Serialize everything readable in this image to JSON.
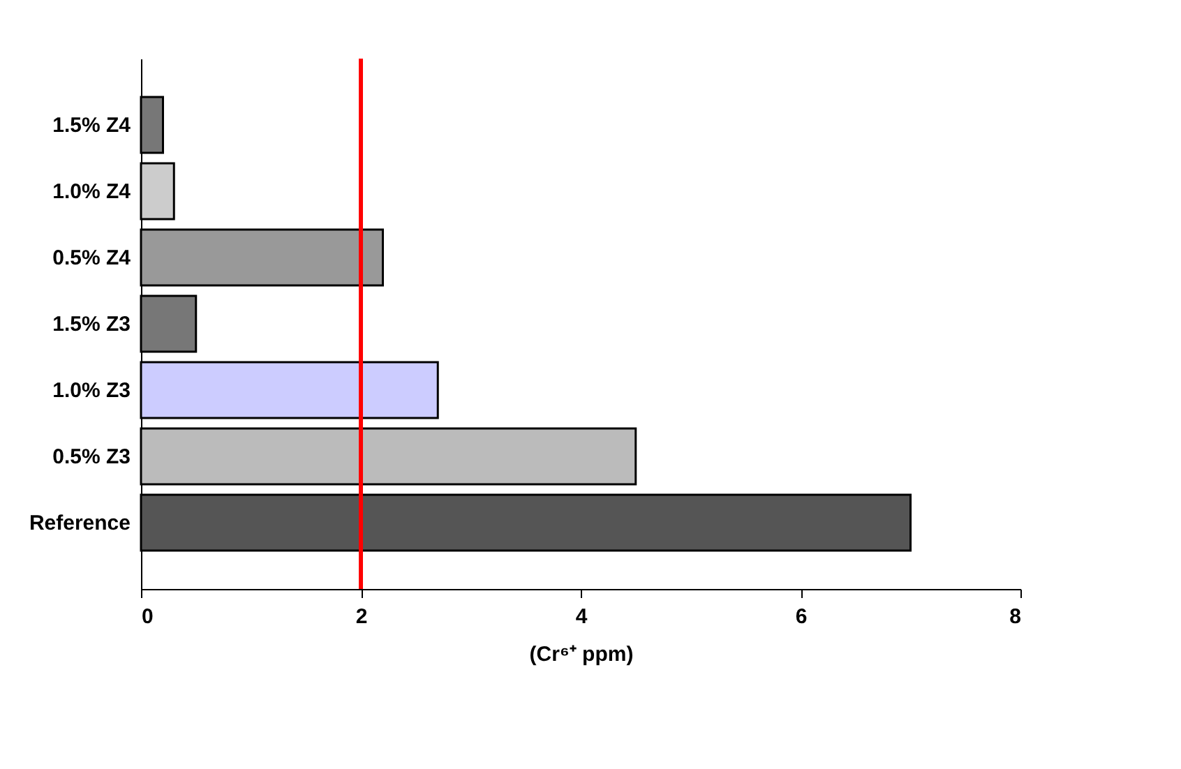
{
  "chart_data": {
    "type": "bar",
    "orientation": "horizontal",
    "xlabel": "(Cr⁶⁺ ppm)",
    "categories": [
      "1.5% Z4",
      "1.0% Z4",
      "0.5% Z4",
      "1.5% Z3",
      "1.0% Z3",
      "0.5% Z3",
      "Reference"
    ],
    "values": [
      0.2,
      0.3,
      2.2,
      0.5,
      2.7,
      4.5,
      7.0
    ],
    "colors": [
      "#777777",
      "#cccccc",
      "#999999",
      "#777777",
      "#ccccff",
      "#bbbbbb",
      "#555555"
    ],
    "xlim": [
      0,
      8
    ],
    "xticks": [
      0,
      2,
      4,
      6,
      8
    ],
    "grid": false,
    "ref_lines": [
      {
        "axis": "x",
        "value": 2,
        "color": "#ff0000"
      }
    ]
  }
}
